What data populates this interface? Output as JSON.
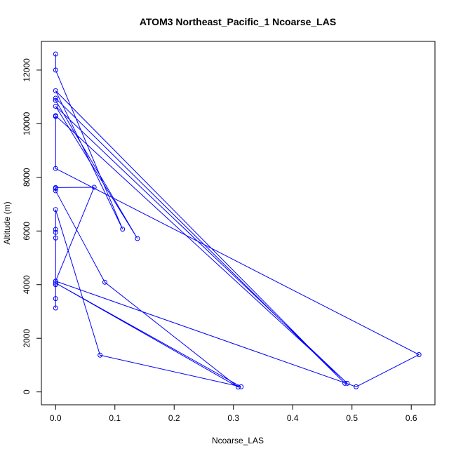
{
  "chart_data": {
    "type": "line",
    "title": "ATOM3 Northeast_Pacific_1 Ncoarse_LAS",
    "xlabel": "Ncoarse_LAS",
    "ylabel": "Altitude (m)",
    "xlim": [
      -0.024,
      0.64
    ],
    "ylim": [
      -480,
      13070
    ],
    "xticks": [
      0.0,
      0.1,
      0.2,
      0.3,
      0.4,
      0.5,
      0.6
    ],
    "xtick_labels": [
      "0.0",
      "0.1",
      "0.2",
      "0.3",
      "0.4",
      "0.5",
      "0.6"
    ],
    "yticks": [
      0,
      2000,
      4000,
      6000,
      8000,
      10000,
      12000
    ],
    "ytick_labels": [
      "0",
      "2000",
      "4000",
      "6000",
      "8000",
      "10000",
      "12000"
    ],
    "series": [
      {
        "color": "#0000ff",
        "marker": "open-circle",
        "points": [
          {
            "x": 0.0,
            "y": 12600
          },
          {
            "x": 0.0,
            "y": 12000
          },
          {
            "x": 0.113,
            "y": 6070
          },
          {
            "x": 0.0,
            "y": 11230
          },
          {
            "x": 0.488,
            "y": 320
          },
          {
            "x": 0.0,
            "y": 10950
          },
          {
            "x": 0.0,
            "y": 10870
          },
          {
            "x": 0.138,
            "y": 5720
          },
          {
            "x": 0.0,
            "y": 10650
          },
          {
            "x": 0.492,
            "y": 320
          },
          {
            "x": 0.0,
            "y": 10300
          },
          {
            "x": 0.0,
            "y": 10270
          },
          {
            "x": 0.0,
            "y": 8330
          },
          {
            "x": 0.613,
            "y": 1390
          },
          {
            "x": 0.507,
            "y": 190
          },
          {
            "x": 0.0,
            "y": 4130
          },
          {
            "x": 0.065,
            "y": 7630
          },
          {
            "x": 0.0,
            "y": 7620
          },
          {
            "x": 0.0,
            "y": 7590
          },
          {
            "x": 0.0,
            "y": 7500
          },
          {
            "x": 0.083,
            "y": 4090
          },
          {
            "x": 0.308,
            "y": 180
          },
          {
            "x": 0.0,
            "y": 4060
          },
          {
            "x": 0.313,
            "y": 190
          },
          {
            "x": 0.075,
            "y": 1370
          },
          {
            "x": 0.0,
            "y": 6800
          },
          {
            "x": 0.0,
            "y": 6060
          },
          {
            "x": 0.0,
            "y": 5950
          },
          {
            "x": 0.0,
            "y": 5740
          },
          {
            "x": 0.0,
            "y": 4000
          },
          {
            "x": 0.0,
            "y": 3480
          },
          {
            "x": 0.0,
            "y": 3130
          }
        ]
      }
    ]
  }
}
